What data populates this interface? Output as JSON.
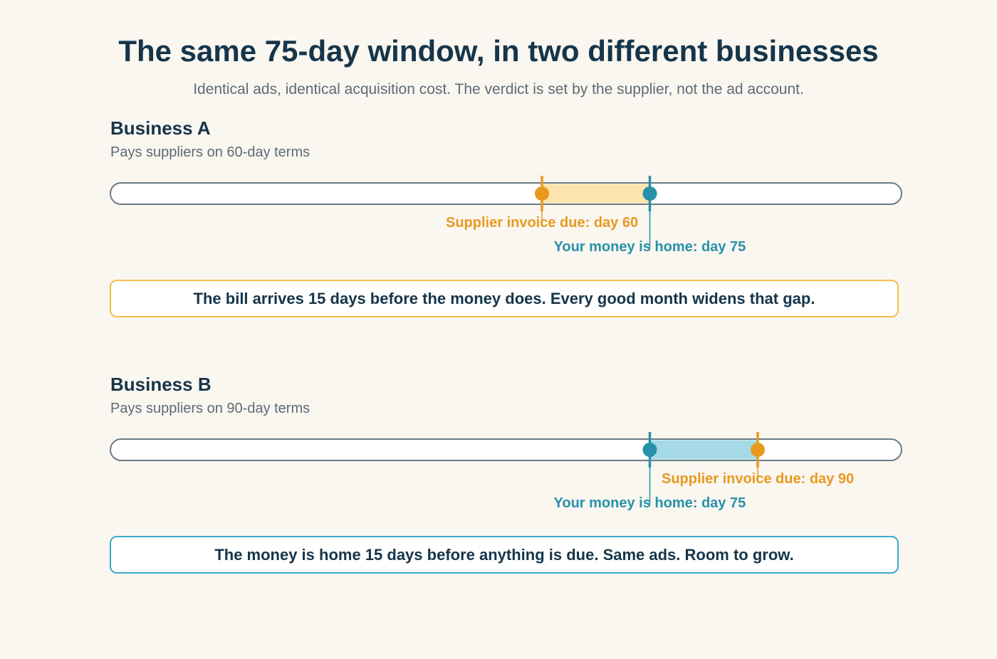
{
  "title": "The same 75-day window, in two different businesses",
  "subtitle": "Identical ads, identical acquisition cost. The verdict is set by the supplier, not the ad account.",
  "colors": {
    "supplier": "#e79a1f",
    "money": "#2592a8",
    "gap_late": "#fde3ae",
    "gap_early": "#a6dae7",
    "box_warn": "#f2c04a",
    "box_ok": "#39acc6"
  },
  "chart_data": [
    {
      "type": "timeline",
      "name": "Business A",
      "description": "Pays suppliers on 60-day terms",
      "x_range_days": [
        0,
        110
      ],
      "markers": [
        {
          "id": "supplier",
          "label": "Supplier invoice due: day 60",
          "day": 60
        },
        {
          "id": "money",
          "label": "Your money is home: day 75",
          "day": 75
        }
      ],
      "gap_days": 15,
      "verdict": "The bill arrives 15 days before the money does. Every good month widens that gap."
    },
    {
      "type": "timeline",
      "name": "Business B",
      "description": "Pays suppliers on 90-day terms",
      "x_range_days": [
        0,
        110
      ],
      "markers": [
        {
          "id": "supplier",
          "label": "Supplier invoice due: day 90",
          "day": 90
        },
        {
          "id": "money",
          "label": "Your money is home: day 75",
          "day": 75
        }
      ],
      "gap_days": 15,
      "verdict": "The money is home 15 days before anything is due. Same ads. Room to grow."
    }
  ]
}
